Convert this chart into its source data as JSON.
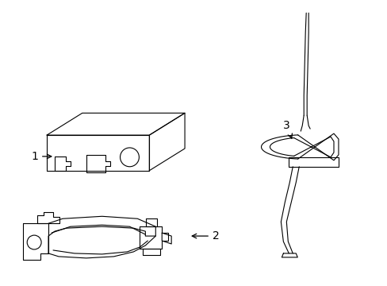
{
  "background_color": "#ffffff",
  "line_color": "#000000",
  "label_color": "#000000",
  "label_fontsize": 10,
  "figsize": [
    4.89,
    3.6
  ],
  "dpi": 100
}
